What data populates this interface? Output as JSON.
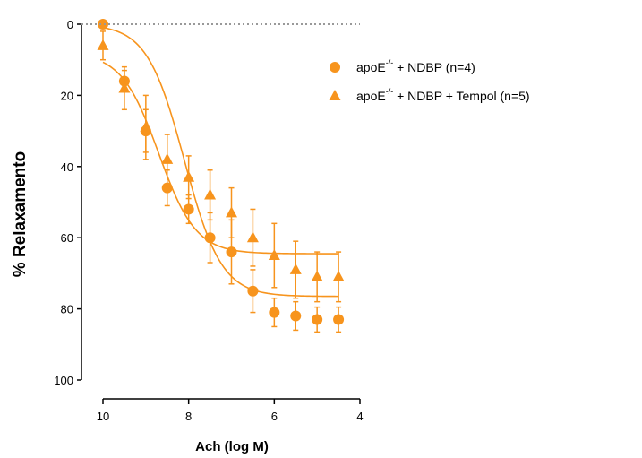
{
  "chart_data": {
    "type": "scatter",
    "title": "",
    "xlabel": "Ach (log M)",
    "ylabel": "% Relaxamento",
    "x_axis": {
      "reversed": true,
      "min": 10,
      "max": 4,
      "ticks": [
        10,
        8,
        6,
        4
      ]
    },
    "y_axis": {
      "reversed": true,
      "min": 0,
      "max": 100,
      "ticks": [
        0,
        20,
        40,
        60,
        80,
        100
      ]
    },
    "reference_line": {
      "y": 0,
      "style": "dotted"
    },
    "legend_position": "top-right",
    "series": [
      {
        "name_prefix": "apoE",
        "name_sup": "-/-",
        "name_suffix": " + NDBP (n=4)",
        "marker": "circle",
        "color": "#f7941d",
        "fit_curve": {
          "bottom": 0,
          "top": 76.5,
          "logEC50": 8.1,
          "hill": 1.0
        },
        "points": [
          {
            "x": 10.0,
            "y": 0,
            "err": 0
          },
          {
            "x": 9.5,
            "y": 16,
            "err": 3
          },
          {
            "x": 9.0,
            "y": 30,
            "err": 6
          },
          {
            "x": 8.5,
            "y": 46,
            "err": 5
          },
          {
            "x": 8.0,
            "y": 52,
            "err": 4
          },
          {
            "x": 7.5,
            "y": 60,
            "err": 7
          },
          {
            "x": 7.0,
            "y": 64,
            "err": 9
          },
          {
            "x": 6.5,
            "y": 75,
            "err": 6
          },
          {
            "x": 6.0,
            "y": 81,
            "err": 4
          },
          {
            "x": 5.5,
            "y": 82,
            "err": 4
          },
          {
            "x": 5.0,
            "y": 83,
            "err": 3.5
          },
          {
            "x": 4.5,
            "y": 83,
            "err": 3.5
          }
        ]
      },
      {
        "name_prefix": "apoE",
        "name_sup": "-/-",
        "name_suffix": " + NDBP + Tempol (n=5)",
        "marker": "triangle",
        "color": "#f7941d",
        "fit_curve": {
          "bottom": 8,
          "top": 64.5,
          "logEC50": 8.7,
          "hill": 1.0
        },
        "points": [
          {
            "x": 10.0,
            "y": 6,
            "err": 4
          },
          {
            "x": 9.5,
            "y": 18,
            "err": 6
          },
          {
            "x": 9.0,
            "y": 29,
            "err": 9
          },
          {
            "x": 8.5,
            "y": 38,
            "err": 7
          },
          {
            "x": 8.0,
            "y": 43,
            "err": 6
          },
          {
            "x": 7.5,
            "y": 48,
            "err": 7
          },
          {
            "x": 7.0,
            "y": 53,
            "err": 7
          },
          {
            "x": 6.5,
            "y": 60,
            "err": 8
          },
          {
            "x": 6.0,
            "y": 65,
            "err": 9
          },
          {
            "x": 5.5,
            "y": 69,
            "err": 8
          },
          {
            "x": 5.0,
            "y": 71,
            "err": 7
          },
          {
            "x": 4.5,
            "y": 71,
            "err": 7
          }
        ]
      }
    ]
  }
}
